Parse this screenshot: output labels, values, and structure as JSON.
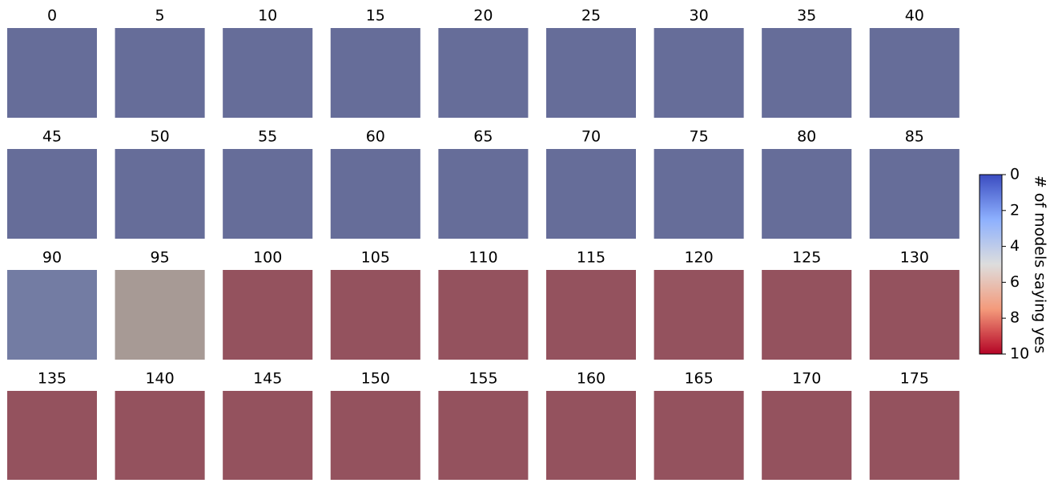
{
  "chart_data": {
    "type": "imagegrid",
    "categories": [
      "0",
      "5",
      "10",
      "15",
      "20",
      "25",
      "30",
      "35",
      "40",
      "45",
      "50",
      "55",
      "60",
      "65",
      "70",
      "75",
      "80",
      "85",
      "90",
      "95",
      "100",
      "105",
      "110",
      "115",
      "120",
      "125",
      "130",
      "135",
      "140",
      "145",
      "150",
      "155",
      "160",
      "165",
      "170",
      "175"
    ],
    "values": [
      0,
      0,
      0,
      0,
      0,
      0,
      0,
      0,
      0,
      0,
      0,
      0,
      0,
      0,
      0,
      0,
      0,
      0,
      1,
      6,
      10,
      10,
      10,
      10,
      10,
      10,
      10,
      10,
      10,
      10,
      10,
      10,
      10,
      10,
      10,
      10
    ],
    "columns": 9,
    "colorbar_label": "# of models saying yes",
    "clim": [
      0,
      10
    ],
    "cticks": [
      0,
      2,
      4,
      6,
      8,
      10
    ],
    "cmap": [
      "#3b4cc0",
      "#8db0fe",
      "#dddddd",
      "#f49a7b",
      "#b40426"
    ]
  }
}
